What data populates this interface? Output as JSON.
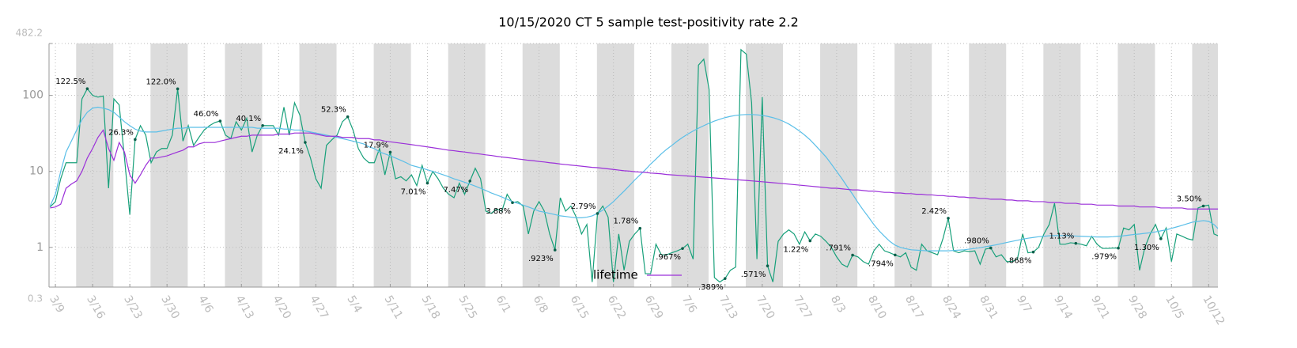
{
  "chart_data": {
    "type": "line",
    "title": "10/15/2020 CT 5 sample test-positivity rate 2.2",
    "log_y": true,
    "grid": true,
    "legend": "lower center",
    "ylim": [
      0.3,
      482.2
    ],
    "yticks": [
      0.3,
      1,
      10,
      100,
      482.2
    ],
    "categories": [
      null,
      "3/9",
      null,
      null,
      null,
      null,
      null,
      null,
      "3/16",
      null,
      null,
      null,
      null,
      null,
      null,
      "3/23",
      null,
      null,
      null,
      null,
      null,
      null,
      "3/30",
      null,
      null,
      null,
      null,
      null,
      null,
      "4/6",
      null,
      null,
      null,
      null,
      null,
      null,
      "4/13",
      null,
      null,
      null,
      null,
      null,
      null,
      "4/20",
      null,
      null,
      null,
      null,
      null,
      null,
      "4/27",
      null,
      null,
      null,
      null,
      null,
      null,
      "5/4",
      null,
      null,
      null,
      null,
      null,
      null,
      "5/11",
      null,
      null,
      null,
      null,
      null,
      null,
      "5/18",
      null,
      null,
      null,
      null,
      null,
      null,
      "5/25",
      null,
      null,
      null,
      null,
      null,
      null,
      "6/1",
      null,
      null,
      null,
      null,
      null,
      null,
      "6/8",
      null,
      null,
      null,
      null,
      null,
      null,
      "6/15",
      null,
      null,
      null,
      null,
      null,
      null,
      "6/22",
      null,
      null,
      null,
      null,
      null,
      null,
      "6/29",
      null,
      null,
      null,
      null,
      null,
      null,
      "7/6",
      null,
      null,
      null,
      null,
      null,
      null,
      "7/13",
      null,
      null,
      null,
      null,
      null,
      null,
      "7/20",
      null,
      null,
      null,
      null,
      null,
      null,
      "7/27",
      null,
      null,
      null,
      null,
      null,
      null,
      "8/3",
      null,
      null,
      null,
      null,
      null,
      null,
      "8/10",
      null,
      null,
      null,
      null,
      null,
      null,
      "8/17",
      null,
      null,
      null,
      null,
      null,
      null,
      "8/24",
      null,
      null,
      null,
      null,
      null,
      null,
      "8/31",
      null,
      null,
      null,
      null,
      null,
      null,
      "9/7",
      null,
      null,
      null,
      null,
      null,
      null,
      "9/14",
      null,
      null,
      null,
      null,
      null,
      null,
      "9/21",
      null,
      null,
      null,
      null,
      null,
      null,
      "9/28",
      null,
      null,
      null,
      null,
      null,
      null,
      "10/5",
      null,
      null,
      null,
      null,
      null,
      null,
      "10/12",
      null,
      null
    ],
    "series": [
      {
        "color": "#17a07a",
        "values": [
          3.4,
          4,
          8,
          13,
          13,
          13,
          90,
          122.5,
          100,
          95,
          98,
          6,
          90,
          75,
          15,
          2.7,
          26.3,
          40,
          30,
          13,
          18,
          20,
          20,
          30,
          122,
          25,
          40,
          22,
          28,
          35,
          40,
          44,
          46,
          30,
          27,
          45,
          35,
          50,
          18,
          30,
          40.1,
          40,
          40,
          30,
          70,
          30,
          80,
          55,
          24.1,
          15,
          8,
          6,
          22,
          26,
          30,
          45,
          52.3,
          35,
          20,
          15,
          13,
          13,
          20,
          9,
          17.9,
          8,
          8.5,
          7.5,
          9,
          6.5,
          12,
          7.01,
          10,
          8,
          6,
          5,
          4.5,
          7,
          5,
          7.47,
          11,
          8,
          3,
          2.8,
          3.2,
          3,
          5,
          3.88,
          4,
          3.5,
          1.5,
          3,
          4,
          3,
          1.5,
          0.923,
          4.5,
          3,
          3.5,
          2.5,
          1.5,
          2,
          0.35,
          2.79,
          3.5,
          2.5,
          0.35,
          1.5,
          0.5,
          1.2,
          1.5,
          1.78,
          0.45,
          0.45,
          1.1,
          0.8,
          0.8,
          0.85,
          0.9,
          0.967,
          1.1,
          0.7,
          250,
          300,
          120,
          0.4,
          0.35,
          0.389,
          0.5,
          0.55,
          400,
          350,
          80,
          0.7,
          95,
          0.571,
          0.35,
          1.2,
          1.5,
          1.7,
          1.5,
          1.1,
          1.6,
          1.22,
          1.5,
          1.4,
          1.2,
          1,
          0.75,
          0.6,
          0.55,
          0.791,
          0.75,
          0.65,
          0.6,
          0.9,
          1.1,
          0.9,
          0.85,
          0.794,
          0.75,
          0.85,
          0.55,
          0.5,
          1.1,
          0.9,
          0.85,
          0.8,
          1.3,
          2.42,
          0.9,
          0.85,
          0.9,
          0.88,
          0.9,
          0.6,
          0.95,
          0.98,
          0.75,
          0.8,
          0.65,
          0.65,
          0.7,
          1.5,
          0.85,
          0.868,
          1,
          1.5,
          2,
          3.8,
          1.1,
          1.1,
          1.15,
          1.13,
          1.1,
          1.05,
          1.4,
          1.1,
          0.97,
          0.97,
          0.98,
          0.979,
          1.8,
          1.7,
          2,
          0.5,
          1,
          1.5,
          2,
          1.3,
          1.8,
          0.65,
          1.5,
          1.4,
          1.3,
          1.25,
          3.3,
          3.5,
          3.6,
          1.5,
          1.4
        ],
        "value_labels": [
          null,
          null,
          null,
          null,
          null,
          null,
          null,
          "122.5%",
          null,
          null,
          null,
          null,
          null,
          null,
          null,
          null,
          "26.3%",
          null,
          null,
          null,
          null,
          null,
          null,
          null,
          "122.0%",
          null,
          null,
          null,
          null,
          null,
          null,
          null,
          "46.0%",
          null,
          null,
          null,
          null,
          null,
          null,
          null,
          "40.1%",
          null,
          null,
          null,
          null,
          null,
          null,
          null,
          "24.1%",
          null,
          null,
          null,
          null,
          null,
          null,
          null,
          "52.3%",
          null,
          null,
          null,
          null,
          null,
          null,
          null,
          "17.9%",
          null,
          null,
          null,
          null,
          null,
          null,
          "7.01%",
          null,
          null,
          null,
          null,
          null,
          null,
          null,
          "7.47%",
          null,
          null,
          null,
          null,
          null,
          null,
          null,
          "3.88%",
          null,
          null,
          null,
          null,
          null,
          null,
          null,
          ".923%",
          null,
          null,
          null,
          null,
          null,
          null,
          null,
          "2.79%",
          null,
          null,
          null,
          null,
          null,
          null,
          null,
          "1.78%",
          null,
          null,
          null,
          null,
          null,
          null,
          null,
          ".967%",
          null,
          null,
          null,
          null,
          null,
          null,
          null,
          ".389%",
          null,
          null,
          null,
          null,
          null,
          null,
          null,
          ".571%",
          null,
          null,
          null,
          null,
          null,
          null,
          null,
          "1.22%",
          null,
          null,
          null,
          null,
          null,
          null,
          null,
          ".791%",
          null,
          null,
          null,
          null,
          null,
          null,
          null,
          ".794%",
          null,
          null,
          null,
          null,
          null,
          null,
          null,
          null,
          null,
          "2.42%",
          null,
          null,
          null,
          null,
          null,
          null,
          null,
          ".980%",
          null,
          null,
          null,
          null,
          null,
          null,
          null,
          ".868%",
          null,
          null,
          null,
          null,
          null,
          null,
          null,
          "1.13%",
          null,
          null,
          null,
          null,
          null,
          null,
          null,
          ".979%",
          null,
          null,
          null,
          null,
          null,
          null,
          null,
          "1.30%",
          null,
          null,
          null,
          null,
          null,
          null,
          null,
          "3.50%",
          null,
          null,
          null
        ]
      },
      {
        "color": "#5bbfe8",
        "values": [
          3.5,
          5,
          10,
          18,
          25,
          35,
          48,
          60,
          68,
          70,
          68,
          65,
          60,
          52,
          45,
          40,
          36,
          34,
          33,
          33,
          33,
          34,
          35,
          36,
          37,
          37,
          38,
          38,
          38,
          38,
          38,
          38,
          38,
          38,
          38,
          38,
          38,
          38,
          38,
          37,
          37,
          37,
          37,
          37,
          36,
          36,
          35,
          35,
          34,
          33,
          32,
          31,
          30,
          29,
          28,
          27,
          26,
          25,
          24,
          23,
          21,
          20,
          18,
          17,
          16,
          15,
          14,
          13,
          12,
          11.5,
          11,
          10.5,
          10,
          9.5,
          9,
          8.5,
          8,
          7.6,
          7.2,
          6.8,
          6.4,
          6,
          5.6,
          5.2,
          4.9,
          4.6,
          4.3,
          4,
          3.8,
          3.6,
          3.4,
          3.2,
          3,
          2.9,
          2.8,
          2.7,
          2.6,
          2.55,
          2.5,
          2.45,
          2.45,
          2.5,
          2.6,
          2.8,
          3.1,
          3.5,
          4,
          4.7,
          5.5,
          6.5,
          7.7,
          9,
          10.5,
          12.5,
          14.5,
          17,
          19.5,
          22,
          25,
          28,
          31,
          34,
          37,
          40,
          43,
          46,
          48.5,
          51,
          53,
          54.5,
          55.5,
          56,
          56,
          55.5,
          54.5,
          53,
          51,
          48.5,
          45.5,
          42,
          38,
          34,
          30,
          26,
          22,
          18.5,
          15.5,
          12.5,
          10,
          8,
          6.3,
          5,
          3.9,
          3.1,
          2.5,
          2,
          1.65,
          1.4,
          1.2,
          1.07,
          1,
          0.96,
          0.93,
          0.92,
          0.91,
          0.9,
          0.9,
          0.9,
          0.9,
          0.9,
          0.91,
          0.92,
          0.93,
          0.95,
          0.97,
          0.99,
          1.02,
          1.05,
          1.08,
          1.12,
          1.16,
          1.2,
          1.24,
          1.28,
          1.32,
          1.35,
          1.38,
          1.4,
          1.42,
          1.43,
          1.43,
          1.43,
          1.42,
          1.41,
          1.4,
          1.39,
          1.38,
          1.37,
          1.37,
          1.37,
          1.38,
          1.4,
          1.42,
          1.45,
          1.48,
          1.5,
          1.53,
          1.56,
          1.6,
          1.65,
          1.7,
          1.78,
          1.86,
          1.95,
          2.05,
          2.15,
          2.2,
          2.25,
          2.2,
          2.0,
          1.7
        ]
      },
      {
        "name": "lifetime",
        "color": "#9b30d9",
        "values": [
          3.3,
          3.4,
          3.7,
          6,
          6.8,
          7.5,
          10,
          15,
          20,
          28,
          35,
          20,
          14,
          24,
          18,
          9,
          7,
          9,
          12,
          15,
          15,
          15.5,
          16,
          17,
          18,
          19,
          21,
          21,
          23,
          24,
          24,
          24,
          25,
          26,
          27,
          28,
          29,
          29,
          30,
          30,
          30,
          30,
          30,
          31,
          31,
          31,
          32,
          32,
          32,
          32,
          31,
          30,
          29,
          29,
          29,
          28,
          28,
          28,
          27,
          27,
          27,
          26,
          26,
          25,
          24.5,
          24,
          23.5,
          23,
          22.5,
          22,
          21.5,
          21,
          20.5,
          20,
          19.5,
          19,
          18.7,
          18.3,
          18,
          17.6,
          17.2,
          16.9,
          16.5,
          16.2,
          15.8,
          15.5,
          15.2,
          14.9,
          14.6,
          14.3,
          14,
          13.8,
          13.5,
          13.3,
          13,
          12.8,
          12.5,
          12.3,
          12.1,
          11.9,
          11.7,
          11.5,
          11.3,
          11.2,
          11,
          10.8,
          10.6,
          10.4,
          10.2,
          10.1,
          9.9,
          9.8,
          9.7,
          9.5,
          9.4,
          9.3,
          9.1,
          9,
          8.9,
          8.8,
          8.7,
          8.6,
          8.5,
          8.4,
          8.3,
          8.2,
          8.1,
          8,
          7.9,
          7.8,
          7.7,
          7.6,
          7.5,
          7.4,
          7.3,
          7.2,
          7.1,
          7,
          6.9,
          6.8,
          6.7,
          6.6,
          6.5,
          6.4,
          6.3,
          6.2,
          6.1,
          6,
          6,
          5.9,
          5.8,
          5.7,
          5.7,
          5.6,
          5.5,
          5.5,
          5.4,
          5.3,
          5.3,
          5.2,
          5.2,
          5.1,
          5.1,
          5,
          5,
          4.9,
          4.9,
          4.8,
          4.8,
          4.7,
          4.7,
          4.6,
          4.6,
          4.5,
          4.5,
          4.4,
          4.4,
          4.3,
          4.3,
          4.3,
          4.2,
          4.2,
          4.1,
          4.1,
          4.1,
          4,
          4,
          4,
          3.9,
          3.9,
          3.9,
          3.8,
          3.8,
          3.8,
          3.7,
          3.7,
          3.7,
          3.6,
          3.6,
          3.6,
          3.6,
          3.5,
          3.5,
          3.5,
          3.5,
          3.4,
          3.4,
          3.4,
          3.4,
          3.3,
          3.3,
          3.3,
          3.3,
          3.3,
          3.2,
          3.2,
          3.2,
          3.2,
          3.2,
          3.2,
          3.2
        ]
      }
    ]
  }
}
